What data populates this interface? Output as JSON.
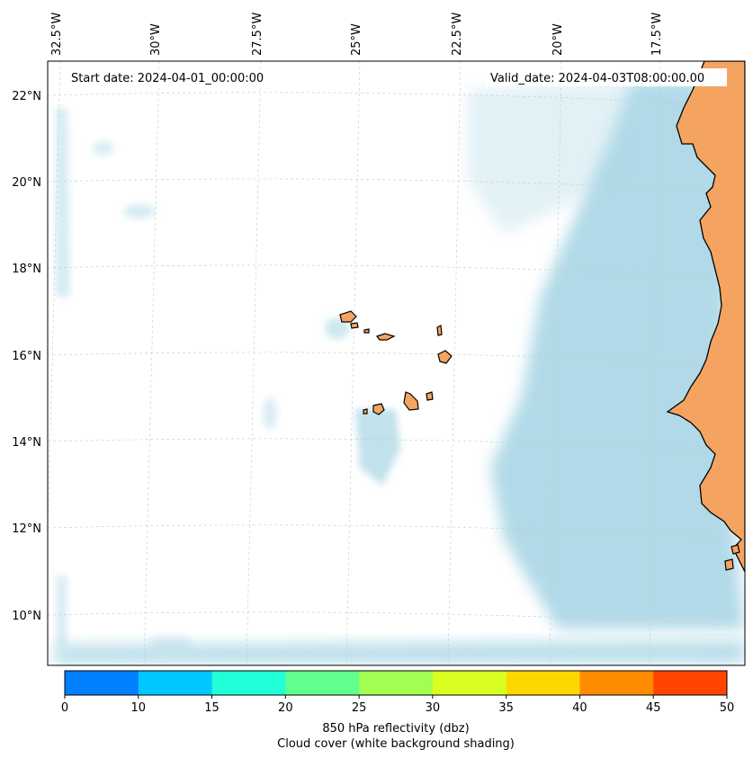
{
  "map": {
    "start_date": "Start date: 2024-04-01_00:00:00",
    "valid_date": "Valid_date: 2024-04-03T08:00:00.00",
    "lon_labels": [
      "32.5°W",
      "30°W",
      "27.5°W",
      "25°W",
      "22.5°W",
      "20°W",
      "17.5°W"
    ],
    "lat_labels": [
      "22°N",
      "20°N",
      "18°N",
      "16°N",
      "14°N",
      "12°N",
      "10°N"
    ],
    "colors": {
      "land": "#f4a460",
      "cloud": "#add8e6",
      "coastline": "#000000",
      "gridline": "#c8c8c8"
    }
  },
  "colorbar": {
    "ticks": [
      "0",
      "10",
      "15",
      "20",
      "25",
      "30",
      "35",
      "40",
      "45",
      "50"
    ],
    "colors": [
      "#0080ff",
      "#00c8ff",
      "#20ffd8",
      "#60ff90",
      "#a0ff50",
      "#d8ff20",
      "#ffd700",
      "#ff8c00",
      "#ff4500"
    ],
    "label_line1": "850 hPa reflectivity (dbz)",
    "label_line2": "Cloud cover (white background shading)"
  }
}
